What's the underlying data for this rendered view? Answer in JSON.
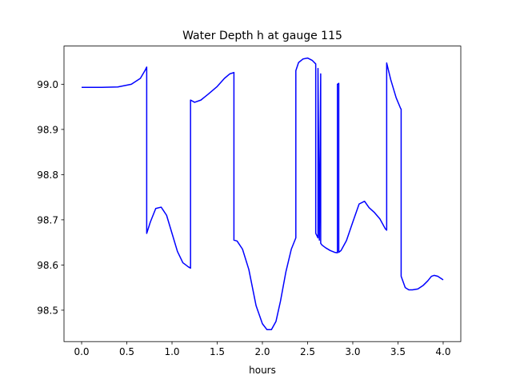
{
  "chart_data": {
    "type": "line",
    "title": "Water Depth h at gauge 115",
    "xlabel": "hours",
    "ylabel": "",
    "xlim": [
      -0.195,
      4.195
    ],
    "ylim": [
      98.4305,
      99.0845
    ],
    "xticks": [
      0.0,
      0.5,
      1.0,
      1.5,
      2.0,
      2.5,
      3.0,
      3.5,
      4.0
    ],
    "xtick_labels": [
      "0.0",
      "0.5",
      "1.0",
      "1.5",
      "2.0",
      "2.5",
      "3.0",
      "3.5",
      "4.0"
    ],
    "yticks": [
      98.5,
      98.6,
      98.7,
      98.8,
      98.9,
      99.0
    ],
    "ytick_labels": [
      "98.5",
      "98.6",
      "98.7",
      "98.8",
      "98.9",
      "99.0"
    ],
    "grid": false,
    "legend": "none",
    "series": [
      {
        "color": "#0000ff",
        "x": [
          0.0,
          0.2,
          0.4,
          0.55,
          0.65,
          0.7,
          0.72,
          0.72,
          0.76,
          0.82,
          0.88,
          0.94,
          1.0,
          1.06,
          1.12,
          1.18,
          1.205,
          1.205,
          1.25,
          1.32,
          1.4,
          1.5,
          1.58,
          1.64,
          1.685,
          1.685,
          1.72,
          1.78,
          1.85,
          1.93,
          2.0,
          2.05,
          2.1,
          2.15,
          2.2,
          2.26,
          2.32,
          2.37,
          2.37,
          2.4,
          2.45,
          2.5,
          2.55,
          2.59,
          2.59,
          2.615,
          2.615,
          2.63,
          2.645,
          2.645,
          2.66,
          2.7,
          2.75,
          2.8,
          2.83,
          2.83,
          2.845,
          2.845,
          2.87,
          2.93,
          3.0,
          3.07,
          3.13,
          3.18,
          3.24,
          3.3,
          3.36,
          3.375,
          3.375,
          3.42,
          3.48,
          3.53,
          3.535,
          3.535,
          3.58,
          3.62,
          3.66,
          3.72,
          3.78,
          3.83,
          3.87,
          3.9,
          3.94,
          3.97,
          4.0
        ],
        "y": [
          98.993,
          98.993,
          98.994,
          99.0,
          99.013,
          99.03,
          99.038,
          98.67,
          98.695,
          98.725,
          98.728,
          98.71,
          98.67,
          98.63,
          98.605,
          98.596,
          98.593,
          98.965,
          98.96,
          98.965,
          98.978,
          98.995,
          99.013,
          99.023,
          99.026,
          98.655,
          98.653,
          98.635,
          98.59,
          98.51,
          98.47,
          98.457,
          98.457,
          98.475,
          98.52,
          98.585,
          98.635,
          98.66,
          99.03,
          99.048,
          99.056,
          99.058,
          99.053,
          99.045,
          98.67,
          98.66,
          99.035,
          98.655,
          99.023,
          98.648,
          98.644,
          98.638,
          98.632,
          98.628,
          98.627,
          99.0,
          99.002,
          98.628,
          98.632,
          98.654,
          98.695,
          98.735,
          98.741,
          98.727,
          98.716,
          98.702,
          98.68,
          98.677,
          99.047,
          99.01,
          98.97,
          98.946,
          98.945,
          98.575,
          98.55,
          98.545,
          98.545,
          98.547,
          98.555,
          98.565,
          98.575,
          98.577,
          98.575,
          98.571,
          98.567
        ]
      }
    ]
  }
}
